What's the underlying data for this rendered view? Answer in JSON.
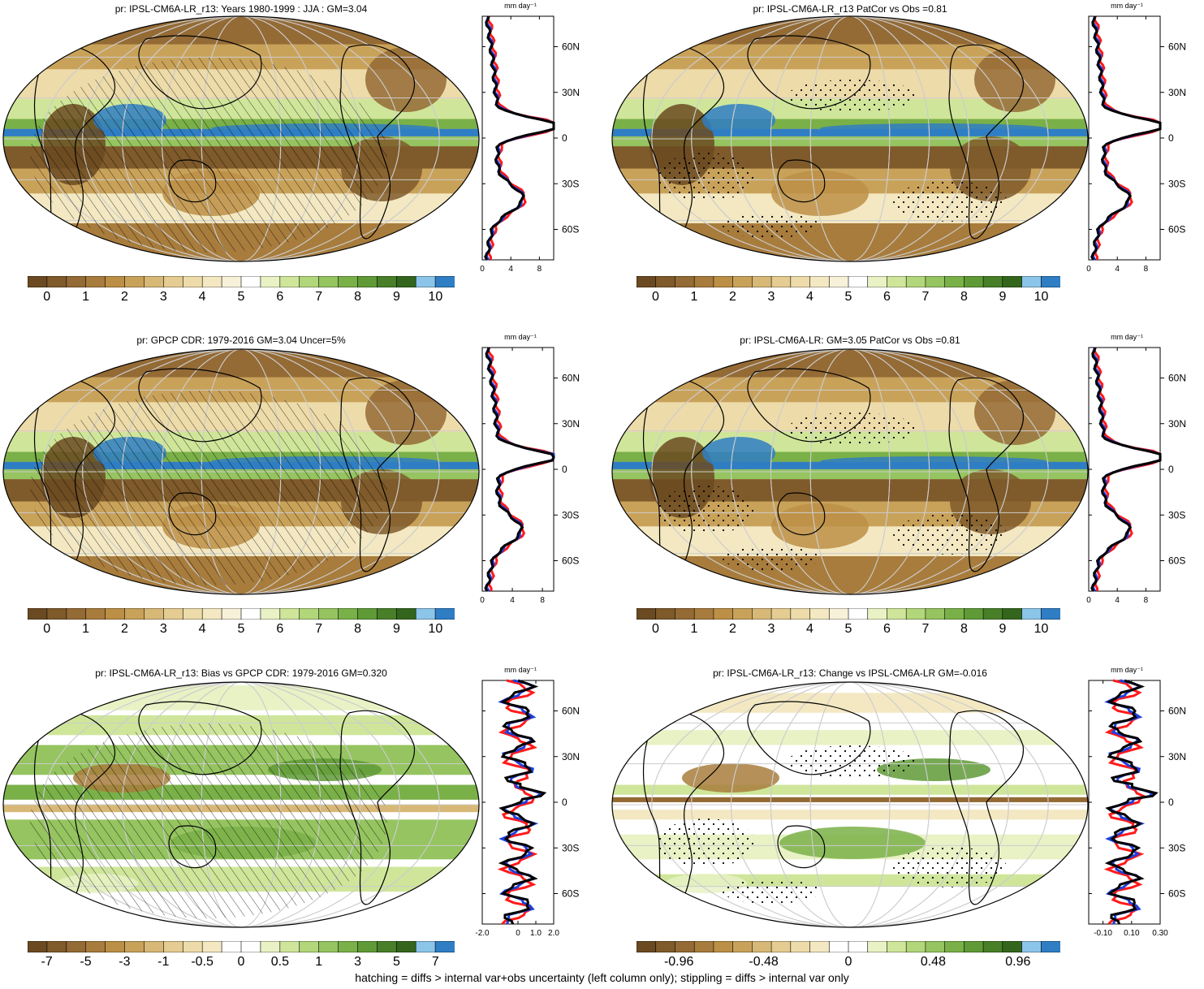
{
  "units_label": "mm day⁻¹",
  "footer": "hatching = diffs > internal var+obs uncertainty (left column only); stippling = diffs > internal var only",
  "colors": {
    "precip_scale": [
      "#6b4a21",
      "#7f5a2a",
      "#946a35",
      "#a87c3c",
      "#bc8f46",
      "#c9a25a",
      "#d8b877",
      "#e4cc92",
      "#eddba9",
      "#f3e8c2",
      "#f8f1d9",
      "#ffffff",
      "#e8f2c5",
      "#cfe69a",
      "#b2d67a",
      "#95c460",
      "#7ab048",
      "#5f9a36",
      "#487f28",
      "#33661c",
      "#8cc5ea",
      "#2f7ec4"
    ],
    "bias_scale": [
      "#6b4a21",
      "#7f5a2a",
      "#946a35",
      "#a87c3c",
      "#bc8f46",
      "#c9a25a",
      "#d8b877",
      "#e4cc92",
      "#eddba9",
      "#f3e8c2",
      "#ffffff",
      "#ffffff",
      "#e8f2c5",
      "#cfe69a",
      "#b2d67a",
      "#95c460",
      "#7ab048",
      "#5f9a36",
      "#487f28",
      "#33661c",
      "#8cc5ea",
      "#2f7ec4"
    ],
    "model_line": "#ff1a1a",
    "obs_line": "#1f3fdd",
    "mean_line": "#000000"
  },
  "panels": [
    {
      "title": "pr: IPSL-CM6A-LR_r13: Years 1980-1999 : JJA : GM=3.04",
      "overlay": "hatch",
      "colorbar_labels": [
        "0",
        "1",
        "2",
        "3",
        "4",
        "5",
        "6",
        "7",
        "8",
        "9",
        "10"
      ],
      "scale": "precip",
      "profile": {
        "x_ticks": [
          "0",
          "4",
          "8"
        ],
        "xlim": [
          0,
          10
        ],
        "lat_ticks": [
          "60N",
          "30N",
          "0",
          "30S",
          "60S"
        ],
        "peak": 9,
        "secondary": 4
      }
    },
    {
      "title": "pr: IPSL-CM6A-LR_r13 PatCor vs Obs =0.81",
      "overlay": "stipple",
      "colorbar_labels": [
        "0",
        "1",
        "2",
        "3",
        "4",
        "5",
        "6",
        "7",
        "8",
        "9",
        "10"
      ],
      "scale": "precip",
      "profile": {
        "x_ticks": [
          "0",
          "4",
          "8"
        ],
        "xlim": [
          0,
          10
        ],
        "lat_ticks": [
          "60N",
          "30N",
          "0",
          "30S",
          "60S"
        ],
        "peak": 9,
        "secondary": 4
      }
    },
    {
      "title": "pr: GPCP CDR: 1979-2016 GM=3.04 Uncer=5%",
      "overlay": "hatch",
      "colorbar_labels": [
        "0",
        "1",
        "2",
        "3",
        "4",
        "5",
        "6",
        "7",
        "8",
        "9",
        "10"
      ],
      "scale": "precip",
      "profile": {
        "x_ticks": [
          "0",
          "4",
          "8"
        ],
        "xlim": [
          0,
          9.5
        ],
        "lat_ticks": [
          "60N",
          "30N",
          "0",
          "30S",
          "60S"
        ],
        "peak": 7.8,
        "secondary": 3.5
      }
    },
    {
      "title": "pr: IPSL-CM6A-LR: GM=3.05 PatCor vs Obs =0.81",
      "overlay": "stipple",
      "colorbar_labels": [
        "0",
        "1",
        "2",
        "3",
        "4",
        "5",
        "6",
        "7",
        "8",
        "9",
        "10"
      ],
      "scale": "precip",
      "profile": {
        "x_ticks": [
          "0",
          "4",
          "8"
        ],
        "xlim": [
          0,
          10
        ],
        "lat_ticks": [
          "60N",
          "30N",
          "0",
          "30S",
          "60S"
        ],
        "peak": 9,
        "secondary": 4
      }
    },
    {
      "title": "pr: IPSL-CM6A-LR_r13: Bias vs GPCP CDR: 1979-2016 GM=0.320",
      "overlay": "hatch",
      "colorbar_labels": [
        "-7",
        "-5",
        "-3",
        "-1",
        "-0.5",
        "0",
        "0.5",
        "1",
        "3",
        "5",
        "7"
      ],
      "scale": "bias",
      "profile": {
        "x_ticks": [
          "-2.0",
          "0",
          "1.0",
          "2.0"
        ],
        "xlim": [
          -2,
          2
        ],
        "lat_ticks": [
          "60N",
          "30N",
          "0",
          "30S",
          "60S"
        ],
        "peak": 1.5,
        "secondary": 0.8
      }
    },
    {
      "title": "pr: IPSL-CM6A-LR_r13: Change vs IPSL-CM6A-LR GM=-0.016",
      "overlay": "stipple",
      "colorbar_labels": [
        "-0.96",
        "-0.48",
        "0",
        "0.48",
        "0.96"
      ],
      "scale": "bias",
      "profile": {
        "x_ticks": [
          "-0.10",
          "0.10",
          "0.30"
        ],
        "xlim": [
          -0.2,
          0.3
        ],
        "lat_ticks": [
          "60N",
          "30N",
          "0",
          "30S",
          "60S"
        ],
        "peak": 0.28,
        "secondary": 0.1
      }
    }
  ]
}
